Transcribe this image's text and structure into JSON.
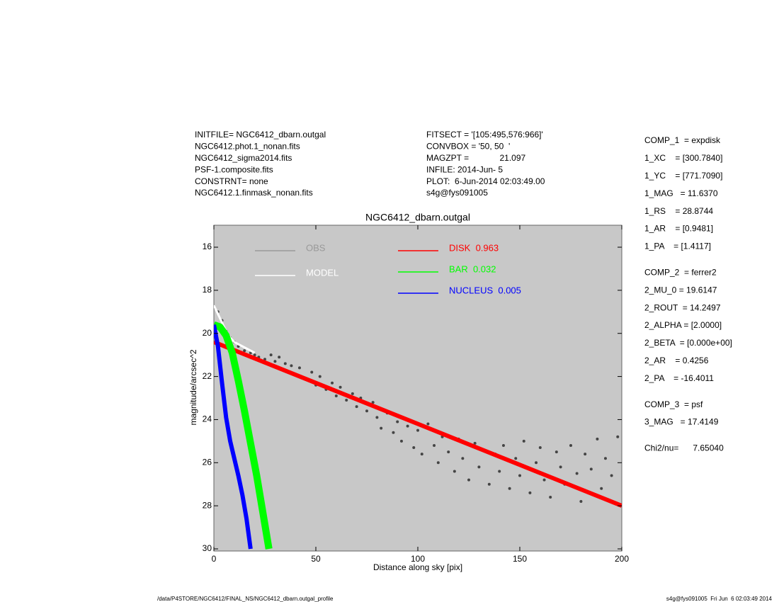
{
  "header": {
    "left": [
      "INITFILE= NGC6412_dbarn.outgal",
      "NGC6412.phot.1_nonan.fits",
      "NGC6412_sigma2014.fits",
      "PSF-1.composite.fits",
      "CONSTRNT= none",
      "NGC6412.1.finmask_nonan.fits"
    ],
    "middle": [
      "FITSECT = '[105:495,576:966]'",
      "CONVBOX = '50, 50  '",
      "MAGZPT =             21.097",
      "INFILE: 2014-Jun- 5",
      "PLOT:  6-Jun-2014 02:03:49.00",
      "s4g@fys091005"
    ]
  },
  "parameters": [
    [
      "COMP_1  = expdisk",
      "1_XC    = [300.7840]",
      "1_YC    = [771.7090]",
      "1_MAG   = 11.6370",
      "1_RS    = 28.8744",
      "1_AR    = [0.9481]",
      "1_PA    = [1.4117]"
    ],
    [
      "COMP_2  = ferrer2",
      "2_MU_0 = 19.6147",
      "2_ROUT  = 14.2497",
      "2_ALPHA = [2.0000]",
      "2_BETA  = [0.000e+00]",
      "2_AR    = 0.4256",
      "2_PA    = -16.4011"
    ],
    [
      "COMP_3  = psf",
      "3_MAG   = 17.4149"
    ],
    [
      "Chi2/nu=      7.65040"
    ]
  ],
  "footer": {
    "left": "/data/P4STORE/NGC6412/FINAL_NS/NGC6412_dbarn.outgal_profile",
    "right": "s4g@fys091005  Fri Jun  6 02:03:49 2014"
  },
  "chart_data": {
    "type": "scatter",
    "title": "NGC6412_dbarn.outgal",
    "x_label": "Distance along sky [pix]",
    "y_label": "magnitude/arcsec^2",
    "xlim": [
      0,
      200
    ],
    "ylim": [
      15,
      30
    ],
    "y_inverted": true,
    "xticks": [
      0,
      50,
      100,
      150,
      200
    ],
    "yticks": [
      16,
      18,
      20,
      22,
      24,
      26,
      28,
      30
    ],
    "background": "#c8c8c8",
    "series": [
      {
        "name": "OBS",
        "type": "scatter",
        "color": "#444444",
        "legend_color": "#999999",
        "x": [
          2,
          4,
          6,
          8,
          10,
          12,
          15,
          18,
          20,
          22,
          25,
          28,
          30,
          32,
          35,
          38,
          40,
          42,
          45,
          48,
          50,
          52,
          55,
          58,
          60,
          62,
          65,
          68,
          70,
          72,
          75,
          78,
          80,
          82,
          85,
          88,
          90,
          92,
          95,
          98,
          100,
          102,
          105,
          108,
          110,
          112,
          115,
          118,
          120,
          122,
          125,
          128,
          130,
          132,
          135,
          138,
          140,
          142,
          145,
          148,
          150,
          152,
          155,
          158,
          160,
          162,
          165,
          168,
          170,
          172,
          175,
          178,
          180,
          182,
          185,
          188,
          190,
          192,
          195,
          198
        ],
        "values": [
          19.0,
          19.4,
          19.9,
          20.2,
          20.4,
          20.6,
          20.8,
          20.9,
          21.0,
          21.1,
          21.2,
          21.0,
          21.3,
          21.1,
          21.4,
          21.5,
          21.9,
          21.6,
          22.1,
          21.8,
          22.4,
          22.0,
          22.6,
          22.3,
          22.9,
          22.5,
          23.1,
          22.8,
          23.4,
          23.0,
          23.6,
          23.2,
          23.9,
          24.4,
          23.7,
          24.6,
          24.1,
          25.0,
          24.3,
          25.3,
          24.5,
          25.6,
          24.2,
          25.2,
          26.0,
          24.8,
          25.5,
          26.4,
          24.9,
          25.8,
          26.8,
          25.1,
          26.2,
          25.4,
          27.0,
          25.6,
          26.4,
          25.2,
          27.2,
          25.8,
          26.6,
          25.0,
          27.4,
          26.0,
          25.3,
          26.8,
          27.6,
          25.5,
          26.2,
          27.0,
          25.2,
          26.5,
          27.8,
          25.6,
          26.3,
          24.9,
          27.2,
          25.8,
          26.6,
          24.8
        ]
      },
      {
        "name": "MODEL",
        "type": "line",
        "color": "#ffffff",
        "x": [
          0,
          2,
          4,
          6,
          8,
          10,
          14,
          20
        ],
        "values": [
          18.7,
          19.1,
          19.5,
          19.9,
          20.2,
          20.4,
          20.6,
          20.9
        ]
      },
      {
        "name": "DISK  0.963",
        "type": "line",
        "color": "#ff0000",
        "x": [
          0,
          50,
          100,
          150,
          200
        ],
        "values": [
          20.4,
          22.3,
          24.2,
          26.1,
          28.0
        ]
      },
      {
        "name": "BAR  0.032",
        "type": "line",
        "color": "#00ff00",
        "x": [
          0,
          3,
          6,
          9,
          12,
          15,
          18,
          21,
          24,
          27
        ],
        "values": [
          19.6,
          19.7,
          20.1,
          20.9,
          22.2,
          23.6,
          25.1,
          26.6,
          28.3,
          30.0
        ]
      },
      {
        "name": "NUCLEUS  0.005",
        "type": "line",
        "color": "#0000ff",
        "x": [
          0,
          2,
          4,
          6,
          8,
          10,
          12,
          14,
          16,
          18
        ],
        "values": [
          19.6,
          20.6,
          22.3,
          23.9,
          25.0,
          25.8,
          26.6,
          27.5,
          28.6,
          30.0
        ]
      }
    ]
  }
}
